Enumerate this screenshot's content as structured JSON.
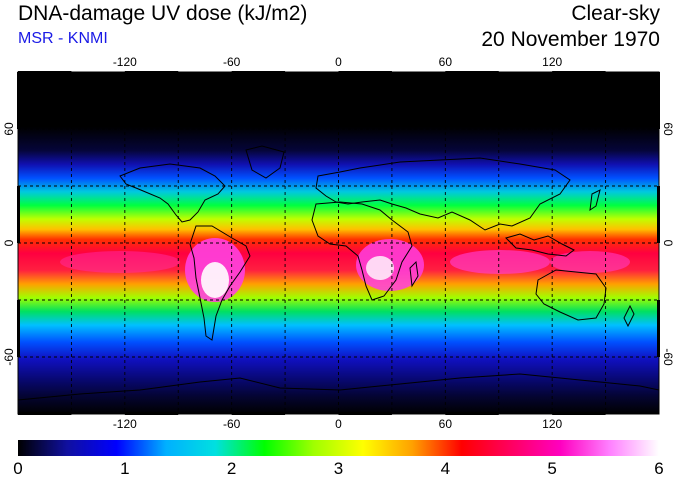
{
  "header": {
    "title": "DNA-damage UV dose (kJ/m2)",
    "subtitle": "MSR - KNMI",
    "condition": "Clear-sky",
    "date": "20 November 1970"
  },
  "map": {
    "lon_ticks": [
      "-120",
      "-60",
      "0",
      "60",
      "120"
    ],
    "lat_ticks": [
      "60",
      "0",
      "-60"
    ],
    "lon_range": [
      -180,
      180
    ],
    "lat_range": [
      -90,
      90
    ]
  },
  "colorbar": {
    "min": 0,
    "max": 6,
    "labels": [
      "0",
      "1",
      "2",
      "3",
      "4",
      "5",
      "6"
    ],
    "stops": [
      "#000000",
      "#1010a0",
      "#0000ff",
      "#00b0ff",
      "#00e0e0",
      "#00ff00",
      "#a0ff00",
      "#ffff00",
      "#ffa000",
      "#ff0000",
      "#ff0060",
      "#ff00c0",
      "#ff80ff",
      "#ffffff"
    ]
  },
  "colors": {
    "land_outline": "#000000",
    "grid": "#000000",
    "subtitle": "#1a1ae6"
  }
}
